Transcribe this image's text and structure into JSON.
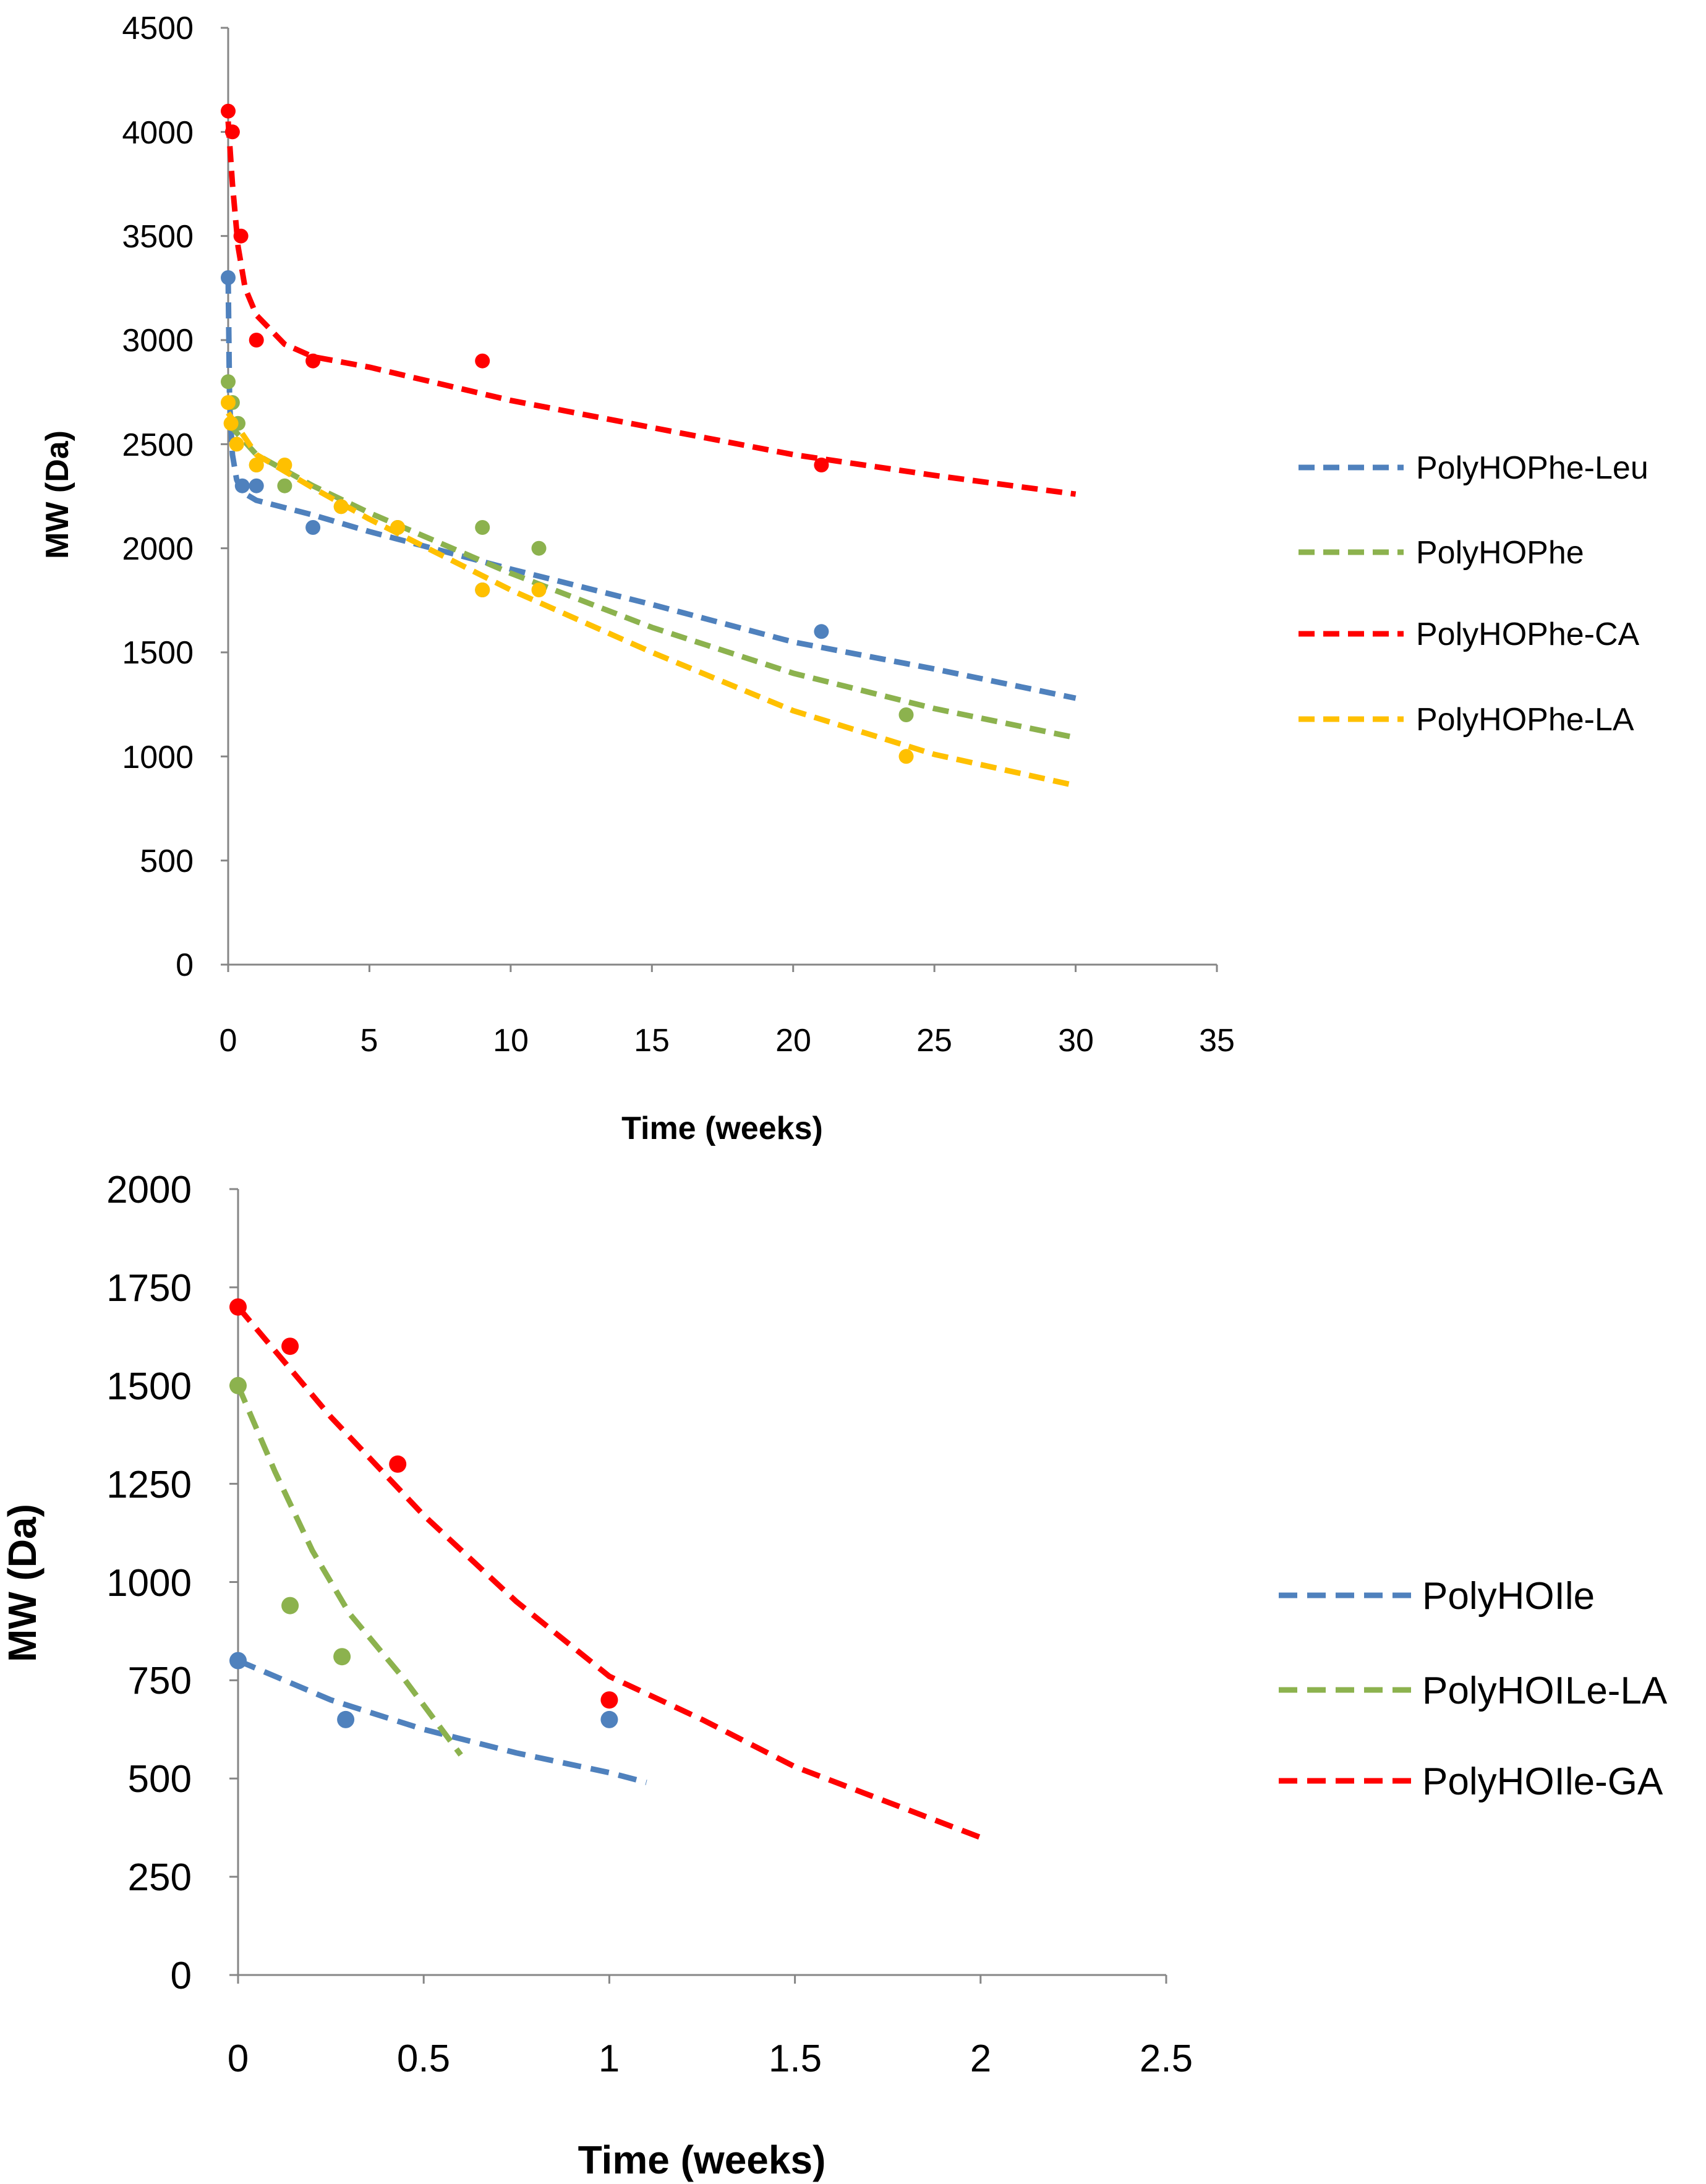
{
  "chart_data": [
    {
      "type": "scatter",
      "title": "",
      "xlabel": "Time (weeks)",
      "ylabel": "MW (Da)",
      "xlim": [
        0,
        35
      ],
      "ylim": [
        0,
        4500
      ],
      "x_ticks": [
        "0",
        "5",
        "10",
        "15",
        "20",
        "25",
        "30",
        "35"
      ],
      "y_ticks": [
        "0",
        "500",
        "1000",
        "1500",
        "2000",
        "2500",
        "3000",
        "3500",
        "4000",
        "4500"
      ],
      "grid": false,
      "legend_position": "right",
      "series": [
        {
          "name": "PolyHOPhe-Leu",
          "color": "#4F81BD",
          "points": [
            [
              0,
              3300
            ],
            [
              0.5,
              2300
            ],
            [
              1,
              2300
            ],
            [
              3,
              2100
            ],
            [
              9,
              1800
            ],
            [
              21,
              1600
            ]
          ],
          "trend": [
            [
              0,
              3300
            ],
            [
              0.05,
              2700
            ],
            [
              0.15,
              2450
            ],
            [
              0.3,
              2330
            ],
            [
              0.5,
              2270
            ],
            [
              1,
              2230
            ],
            [
              3,
              2160
            ],
            [
              5,
              2080
            ],
            [
              10,
              1900
            ],
            [
              15,
              1730
            ],
            [
              20,
              1550
            ],
            [
              25,
              1420
            ],
            [
              30,
              1280
            ]
          ]
        },
        {
          "name": "PolyHOPhe",
          "color": "#8CB24E",
          "points": [
            [
              0,
              2800
            ],
            [
              0.15,
              2700
            ],
            [
              0.35,
              2600
            ],
            [
              1,
              2400
            ],
            [
              2,
              2300
            ],
            [
              4,
              2200
            ],
            [
              6,
              2100
            ],
            [
              9,
              2100
            ],
            [
              11,
              2000
            ],
            [
              24,
              1200
            ]
          ],
          "trend": [
            [
              0,
              2600
            ],
            [
              1,
              2450
            ],
            [
              3,
              2300
            ],
            [
              5,
              2170
            ],
            [
              10,
              1880
            ],
            [
              15,
              1620
            ],
            [
              20,
              1400
            ],
            [
              25,
              1230
            ],
            [
              30,
              1090
            ]
          ]
        },
        {
          "name": "PolyHOPhe-CA",
          "color": "#FF0000",
          "points": [
            [
              0,
              4100
            ],
            [
              0.15,
              4000
            ],
            [
              0.45,
              3500
            ],
            [
              1,
              3000
            ],
            [
              3,
              2900
            ],
            [
              9,
              2900
            ],
            [
              21,
              2400
            ]
          ],
          "trend": [
            [
              0,
              4050
            ],
            [
              0.15,
              3750
            ],
            [
              0.35,
              3450
            ],
            [
              0.6,
              3250
            ],
            [
              1,
              3120
            ],
            [
              2,
              2980
            ],
            [
              3,
              2920
            ],
            [
              5,
              2870
            ],
            [
              10,
              2710
            ],
            [
              15,
              2580
            ],
            [
              20,
              2450
            ],
            [
              25,
              2350
            ],
            [
              30,
              2260
            ]
          ]
        },
        {
          "name": "PolyHOPhe-LA",
          "color": "#FFC000",
          "points": [
            [
              0,
              2700
            ],
            [
              0.1,
              2600
            ],
            [
              0.3,
              2500
            ],
            [
              1,
              2400
            ],
            [
              2,
              2400
            ],
            [
              4,
              2200
            ],
            [
              6,
              2100
            ],
            [
              9,
              1800
            ],
            [
              11,
              1800
            ],
            [
              24,
              1000
            ]
          ],
          "trend": [
            [
              0,
              2650
            ],
            [
              1,
              2450
            ],
            [
              3,
              2290
            ],
            [
              5,
              2140
            ],
            [
              10,
              1800
            ],
            [
              15,
              1500
            ],
            [
              20,
              1220
            ],
            [
              25,
              1010
            ],
            [
              30,
              860
            ]
          ]
        }
      ]
    },
    {
      "type": "scatter",
      "title": "",
      "xlabel": "Time (weeks)",
      "ylabel": "MW (Da)",
      "xlim": [
        0,
        2.5
      ],
      "ylim": [
        0,
        2000
      ],
      "x_ticks": [
        "0",
        "0.5",
        "1",
        "1.5",
        "2",
        "2.5"
      ],
      "y_ticks": [
        "0",
        "250",
        "500",
        "750",
        "1000",
        "1250",
        "1500",
        "1750",
        "2000"
      ],
      "grid": false,
      "legend_position": "right",
      "series": [
        {
          "name": "PolyHOIle",
          "color": "#4F81BD",
          "points": [
            [
              0,
              800
            ],
            [
              0.29,
              650
            ],
            [
              1,
              650
            ]
          ],
          "trend": [
            [
              0,
              800
            ],
            [
              0.25,
              700
            ],
            [
              0.5,
              625
            ],
            [
              0.75,
              565
            ],
            [
              1,
              515
            ],
            [
              1.1,
              490
            ]
          ]
        },
        {
          "name": "PolyHOILe-LA",
          "color": "#8CB24E",
          "points": [
            [
              0,
              1500
            ],
            [
              0.14,
              940
            ],
            [
              0.28,
              810
            ]
          ],
          "trend": [
            [
              0,
              1500
            ],
            [
              0.1,
              1280
            ],
            [
              0.2,
              1080
            ],
            [
              0.3,
              920
            ],
            [
              0.45,
              750
            ],
            [
              0.6,
              560
            ]
          ]
        },
        {
          "name": "PolyHOIle-GA",
          "color": "#FF0000",
          "points": [
            [
              0,
              1700
            ],
            [
              0.14,
              1600
            ],
            [
              0.43,
              1300
            ],
            [
              1,
              700
            ]
          ],
          "trend": [
            [
              0,
              1700
            ],
            [
              0.25,
              1420
            ],
            [
              0.5,
              1170
            ],
            [
              0.75,
              950
            ],
            [
              1,
              760
            ],
            [
              1.25,
              650
            ],
            [
              1.5,
              530
            ],
            [
              1.75,
              440
            ],
            [
              2,
              350
            ]
          ]
        }
      ]
    }
  ]
}
